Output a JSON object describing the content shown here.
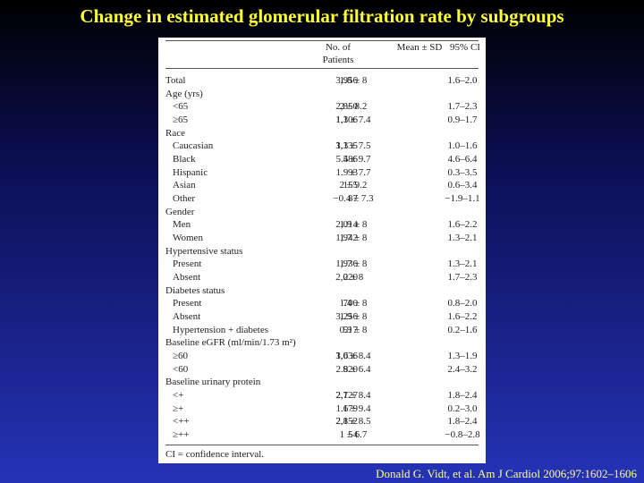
{
  "title": "Change in estimated glomerular filtration rate by subgroups",
  "table": {
    "headers": [
      "No. of Patients",
      "Mean ± SD",
      "95% CI"
    ],
    "rows": [
      {
        "label": "Total",
        "n": "3,956",
        "mean": "1.8 ± 8",
        "ci": "1.6–2.0"
      },
      {
        "label": "Age (yrs)",
        "rows": [
          {
            "label": "<65",
            "n": "2,850",
            "mean": "2 ± 8.2",
            "ci": "1.7–2.3"
          },
          {
            "label": "≥65",
            "n": "1,106",
            "mean": "1.3 ± 7.4",
            "ci": "0.9–1.7"
          }
        ]
      },
      {
        "label": "Race",
        "rows": [
          {
            "label": "Caucasian",
            "n": "3,135",
            "mean": "1.3 ± 7.5",
            "ci": "1.0–1.6"
          },
          {
            "label": "Black",
            "n": "486",
            "mean": "5.5 ± 9.7",
            "ci": "4.6–6.4"
          },
          {
            "label": "Hispanic",
            "n": "93",
            "mean": "1.9 ± 7.7",
            "ci": "0.3–3.5"
          },
          {
            "label": "Asian",
            "n": "155",
            "mean": "2 ± 9.2",
            "ci": "0.6–3.4"
          },
          {
            "label": "Other",
            "n": "87",
            "mean": "−0.4 ± 7.3",
            "ci": "−1.9–1.1"
          }
        ]
      },
      {
        "label": "Gender",
        "rows": [
          {
            "label": "Men",
            "n": "2,014",
            "mean": "1.9 ± 8",
            "ci": "1.6–2.2"
          },
          {
            "label": "Women",
            "n": "1,942",
            "mean": "1.7 ± 8",
            "ci": "1.3–2.1"
          }
        ]
      },
      {
        "label": "Hypertensive status",
        "rows": [
          {
            "label": "Present",
            "n": "1,936",
            "mean": "1.7 ± 8",
            "ci": "1.3–2.1"
          },
          {
            "label": "Absent",
            "n": "2,020",
            "mean": "2 ± 8",
            "ci": "1.7–2.3"
          }
        ]
      },
      {
        "label": "Diabetes status",
        "rows": [
          {
            "label": "Present",
            "n": "700",
            "mean": "1.4 ± 8",
            "ci": "0.8–2.0"
          },
          {
            "label": "Absent",
            "n": "3,256",
            "mean": "1.9 ± 8",
            "ci": "1.6–2.2"
          },
          {
            "label": "Hypertension + diabetes",
            "n": "517",
            "mean": "0.9 ± 8",
            "ci": "0.2–1.6"
          }
        ]
      },
      {
        "label": "Baseline eGFR (ml/min/1.73 m²)",
        "rows": [
          {
            "label": "≥60",
            "n": "3,036",
            "mean": "1.6 ± 8.4",
            "ci": "1.3–1.9"
          },
          {
            "label": "<60",
            "n": "920",
            "mean": "2.8 ± 6.4",
            "ci": "2.4–3.2"
          }
        ]
      },
      {
        "label": "Baseline urinary protein",
        "rows": [
          {
            "label": "<+",
            "n": "2,727",
            "mean": "2.1 ± 8.4",
            "ci": "1.8–2.4"
          },
          {
            "label": "≥+",
            "n": "179",
            "mean": "1.6 ± 9.4",
            "ci": "0.2–3.0"
          },
          {
            "label": "<++",
            "n": "2,852",
            "mean": "2.1 ± 8.5",
            "ci": "1.8–2.4"
          },
          {
            "label": "≥++",
            "n": "54",
            "mean": "1 ± 6.7",
            "ci": "−0.8–2.8"
          }
        ]
      }
    ],
    "footnote": "CI = confidence interval."
  },
  "citation": "Donald G. Vidt, et al. Am J Cardiol 2006;97:1602–1606"
}
